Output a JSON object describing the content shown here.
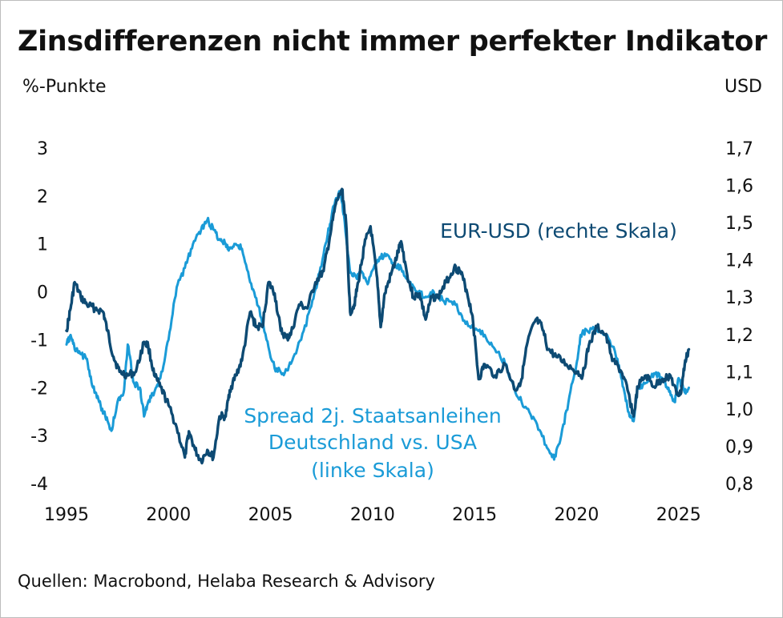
{
  "chart_data": {
    "type": "line",
    "title": "Zinsdifferenzen nicht immer perfekter Indikator",
    "ylabel_left": "%-Punkte",
    "ylabel_right": "USD",
    "source": "Quellen: Macrobond, Helaba Research & Advisory",
    "x_ticks": [
      "1995",
      "2000",
      "2005",
      "2010",
      "2015",
      "2020",
      "2025"
    ],
    "x_tick_values": [
      1995,
      2000,
      2005,
      2010,
      2015,
      2020,
      2025
    ],
    "xlim": [
      1995,
      2025.6
    ],
    "ylim_left": [
      -4,
      3
    ],
    "ylim_right": [
      0.8,
      1.7
    ],
    "yticks_left": [
      "-4",
      "-3",
      "-2",
      "-1",
      "0",
      "1",
      "2",
      "3"
    ],
    "yticks_left_values": [
      -4,
      -3,
      -2,
      -1,
      0,
      1,
      2,
      3
    ],
    "yticks_right": [
      "0,8",
      "0,9",
      "1,0",
      "1,1",
      "1,2",
      "1,3",
      "1,4",
      "1,5",
      "1,6",
      "1,7"
    ],
    "yticks_right_values": [
      0.8,
      0.9,
      1.0,
      1.1,
      1.2,
      1.3,
      1.4,
      1.5,
      1.6,
      1.7
    ],
    "series": [
      {
        "name": "EUR-USD (rechte Skala)",
        "label_lines": [
          "EUR-USD (rechte Skala)"
        ],
        "axis": "right",
        "color": "#0d4a73",
        "x": [
          1995.0,
          1995.2,
          1995.4,
          1995.7,
          1996.0,
          1996.4,
          1996.8,
          1997.0,
          1997.3,
          1997.6,
          1998.0,
          1998.4,
          1998.8,
          1999.0,
          1999.3,
          1999.6,
          2000.0,
          2000.4,
          2000.8,
          2001.0,
          2001.3,
          2001.6,
          2001.9,
          2002.2,
          2002.5,
          2002.8,
          2003.0,
          2003.3,
          2003.6,
          2004.0,
          2004.3,
          2004.6,
          2004.9,
          2005.2,
          2005.5,
          2005.8,
          2006.0,
          2006.4,
          2006.8,
          2007.2,
          2007.6,
          2007.9,
          2008.2,
          2008.5,
          2008.7,
          2008.9,
          2009.1,
          2009.3,
          2009.6,
          2009.9,
          2010.2,
          2010.4,
          2010.6,
          2010.9,
          2011.2,
          2011.4,
          2011.7,
          2012.0,
          2012.3,
          2012.6,
          2012.9,
          2013.2,
          2013.6,
          2014.0,
          2014.3,
          2014.6,
          2014.9,
          2015.2,
          2015.5,
          2016.0,
          2016.5,
          2017.0,
          2017.3,
          2017.6,
          2018.0,
          2018.3,
          2018.6,
          2019.0,
          2019.5,
          2020.0,
          2020.3,
          2020.6,
          2021.0,
          2021.4,
          2021.8,
          2022.2,
          2022.5,
          2022.8,
          2023.0,
          2023.4,
          2023.8,
          2024.2,
          2024.6,
          2024.9,
          2025.1,
          2025.3,
          2025.5
        ],
        "values": [
          1.21,
          1.27,
          1.34,
          1.3,
          1.28,
          1.27,
          1.26,
          1.21,
          1.14,
          1.1,
          1.09,
          1.1,
          1.18,
          1.17,
          1.09,
          1.06,
          1.01,
          0.95,
          0.87,
          0.94,
          0.89,
          0.86,
          0.89,
          0.87,
          0.98,
          0.98,
          1.05,
          1.09,
          1.13,
          1.26,
          1.22,
          1.22,
          1.34,
          1.31,
          1.21,
          1.19,
          1.2,
          1.28,
          1.27,
          1.34,
          1.37,
          1.46,
          1.55,
          1.59,
          1.5,
          1.26,
          1.28,
          1.34,
          1.44,
          1.49,
          1.36,
          1.22,
          1.31,
          1.36,
          1.41,
          1.45,
          1.36,
          1.3,
          1.31,
          1.24,
          1.3,
          1.3,
          1.34,
          1.38,
          1.37,
          1.32,
          1.25,
          1.08,
          1.12,
          1.09,
          1.12,
          1.05,
          1.08,
          1.18,
          1.24,
          1.22,
          1.16,
          1.14,
          1.12,
          1.1,
          1.09,
          1.17,
          1.22,
          1.2,
          1.13,
          1.1,
          1.05,
          0.98,
          1.06,
          1.09,
          1.06,
          1.08,
          1.09,
          1.04,
          1.04,
          1.12,
          1.16
        ]
      },
      {
        "name": "Spread 2j. Staatsanleihen Deutschland vs. USA (linke Skala)",
        "label_lines": [
          "Spread 2j. Staatsanleihen",
          "Deutschland vs. USA",
          "(linke Skala)"
        ],
        "axis": "left",
        "color": "#1a9bd7",
        "x": [
          1995.0,
          1995.2,
          1995.4,
          1995.7,
          1996.0,
          1996.3,
          1996.6,
          1996.9,
          1997.2,
          1997.5,
          1997.8,
          1998.0,
          1998.3,
          1998.6,
          1998.8,
          1999.0,
          1999.3,
          1999.6,
          2000.0,
          2000.4,
          2000.8,
          2001.2,
          2001.6,
          2001.9,
          2002.2,
          2002.5,
          2002.8,
          2003.0,
          2003.3,
          2003.6,
          2004.0,
          2004.4,
          2004.8,
          2005.2,
          2005.6,
          2006.0,
          2006.5,
          2007.0,
          2007.4,
          2007.8,
          2008.1,
          2008.4,
          2008.6,
          2008.9,
          2009.2,
          2009.5,
          2009.8,
          2010.2,
          2010.6,
          2011.0,
          2011.4,
          2011.8,
          2012.2,
          2012.6,
          2013.0,
          2013.5,
          2014.0,
          2014.5,
          2015.0,
          2015.5,
          2016.0,
          2016.5,
          2017.0,
          2017.5,
          2018.0,
          2018.5,
          2018.9,
          2019.2,
          2019.6,
          2020.0,
          2020.2,
          2020.5,
          2021.0,
          2021.5,
          2022.0,
          2022.3,
          2022.6,
          2022.8,
          2023.0,
          2023.4,
          2023.8,
          2024.2,
          2024.5,
          2024.8,
          2025.0,
          2025.3,
          2025.5
        ],
        "values": [
          -1.1,
          -0.9,
          -1.2,
          -1.3,
          -1.4,
          -2.0,
          -2.3,
          -2.6,
          -2.9,
          -2.3,
          -2.1,
          -1.1,
          -1.9,
          -2.0,
          -2.6,
          -2.3,
          -2.1,
          -1.8,
          -1.0,
          0.1,
          0.5,
          1.0,
          1.3,
          1.5,
          1.3,
          1.1,
          1.0,
          0.9,
          1.0,
          0.9,
          0.2,
          -0.3,
          -1.0,
          -1.6,
          -1.7,
          -1.5,
          -1.0,
          -0.3,
          0.4,
          1.2,
          1.8,
          2.1,
          1.6,
          0.4,
          0.3,
          0.4,
          0.2,
          0.6,
          0.8,
          0.6,
          0.5,
          0.2,
          0.0,
          -0.1,
          0.0,
          -0.2,
          -0.2,
          -0.6,
          -0.8,
          -0.9,
          -1.2,
          -1.5,
          -2.1,
          -2.4,
          -2.7,
          -3.2,
          -3.5,
          -3.1,
          -2.3,
          -1.5,
          -0.9,
          -0.8,
          -0.8,
          -0.9,
          -1.4,
          -2.0,
          -2.6,
          -2.7,
          -2.0,
          -1.9,
          -1.7,
          -1.8,
          -2.0,
          -2.3,
          -1.8,
          -2.1,
          -2.0
        ]
      }
    ]
  }
}
